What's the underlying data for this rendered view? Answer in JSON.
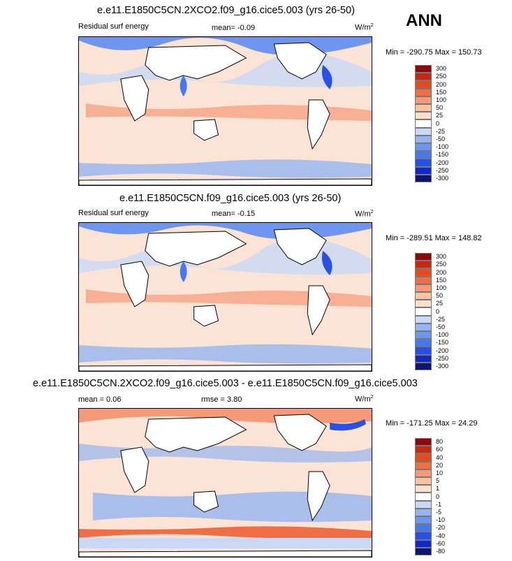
{
  "season": "ANN",
  "colors": {
    "levels14": [
      "#0a1672",
      "#1428c8",
      "#2850e6",
      "#4678f0",
      "#6e96f0",
      "#96b4f0",
      "#c8d8f5",
      "#ffffff",
      "#fce0cc",
      "#fac3a0",
      "#f59a78",
      "#f06e46",
      "#e64b1e",
      "#c8280f",
      "#8c0a0a"
    ],
    "land": "#ffffff"
  },
  "panels": [
    {
      "id": "test",
      "title": "e.e11.E1850C5CN.2XCO2.f09_g16.cice5.003 (yrs 26-50)",
      "left_label": "Residual surf energy",
      "mid_label": "mean=  -0.09",
      "units_base": "W/m",
      "units_exp": "2",
      "minmax": "Min = -290.75 Max = 150.73",
      "levels": [
        "300",
        "250",
        "200",
        "150",
        "100",
        "50",
        "25",
        "0",
        "-25",
        "-50",
        "-100",
        "-150",
        "-200",
        "-250",
        "-300"
      ]
    },
    {
      "id": "control",
      "title": "e.e11.E1850C5CN.f09_g16.cice5.003 (yrs 26-50)",
      "left_label": "Residual surf energy",
      "mid_label": "mean=  -0.15",
      "units_base": "W/m",
      "units_exp": "2",
      "minmax": "Min = -289.51 Max = 148.82",
      "levels": [
        "300",
        "250",
        "200",
        "150",
        "100",
        "50",
        "25",
        "0",
        "-25",
        "-50",
        "-100",
        "-150",
        "-200",
        "-250",
        "-300"
      ]
    },
    {
      "id": "diff",
      "title": "e.e11.E1850C5CN.2XCO2.f09_g16.cice5.003 - e.e11.E1850C5CN.f09_g16.cice5.003",
      "left_label": "mean =  0.06",
      "mid_label": "rmse =  3.80",
      "units_base": "W/m",
      "units_exp": "2",
      "minmax": "Min = -171.25 Max =  24.29",
      "levels": [
        "80",
        "60",
        "40",
        "20",
        "10",
        "5",
        "1",
        "0",
        "-1",
        "-5",
        "-10",
        "-20",
        "-40",
        "-60",
        "-80"
      ]
    }
  ],
  "chart_data": [
    {
      "type": "heatmap",
      "title": "e.e11.E1850C5CN.2XCO2.f09_g16.cice5.003 (yrs 26-50)",
      "variable": "Residual surf energy",
      "units": "W/m2",
      "mean": -0.09,
      "min": -290.75,
      "max": 150.73,
      "levels": [
        -300,
        -250,
        -200,
        -150,
        -100,
        -50,
        -25,
        0,
        25,
        50,
        100,
        150,
        200,
        250,
        300
      ]
    },
    {
      "type": "heatmap",
      "title": "e.e11.E1850C5CN.f09_g16.cice5.003 (yrs 26-50)",
      "variable": "Residual surf energy",
      "units": "W/m2",
      "mean": -0.15,
      "min": -289.51,
      "max": 148.82,
      "levels": [
        -300,
        -250,
        -200,
        -150,
        -100,
        -50,
        -25,
        0,
        25,
        50,
        100,
        150,
        200,
        250,
        300
      ]
    },
    {
      "type": "heatmap",
      "title": "e.e11.E1850C5CN.2XCO2.f09_g16.cice5.003 - e.e11.E1850C5CN.f09_g16.cice5.003",
      "units": "W/m2",
      "mean": 0.06,
      "rmse": 3.8,
      "min": -171.25,
      "max": 24.29,
      "levels": [
        -80,
        -60,
        -40,
        -20,
        -10,
        -5,
        -1,
        0,
        1,
        5,
        10,
        20,
        40,
        60,
        80
      ]
    }
  ]
}
